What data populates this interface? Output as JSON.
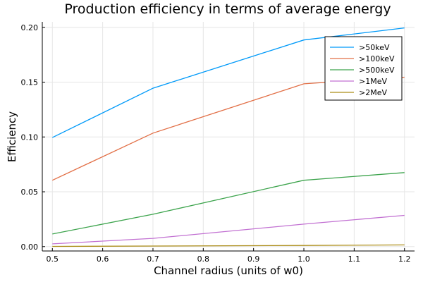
{
  "chart_data": {
    "type": "line",
    "title": "Production efficiency in terms of average energy",
    "xlabel": "Channel radius (units of w0)",
    "ylabel": "Efficiency",
    "xlim": [
      0.48,
      1.22
    ],
    "ylim": [
      -0.004,
      0.205
    ],
    "xticks": [
      0.5,
      0.6,
      0.7,
      0.8,
      0.9,
      1.0,
      1.1,
      1.2
    ],
    "xtick_labels": [
      "0.5",
      "0.6",
      "0.7",
      "0.8",
      "0.9",
      "1.0",
      "1.1",
      "1.2"
    ],
    "yticks": [
      0.0,
      0.05,
      0.1,
      0.15,
      0.2
    ],
    "ytick_labels": [
      "0.00",
      "0.05",
      "0.10",
      "0.15",
      "0.20"
    ],
    "grid": true,
    "legend_position": "top-right",
    "x": [
      0.5,
      0.7,
      1.0,
      1.2
    ],
    "series": [
      {
        "name": ">50keV",
        "color": "#009af9",
        "values": [
          0.0995,
          0.1445,
          0.1885,
          0.1995
        ]
      },
      {
        "name": ">100keV",
        "color": "#e26f46",
        "values": [
          0.0605,
          0.1035,
          0.1485,
          0.1545
        ]
      },
      {
        "name": ">500keV",
        "color": "#3da44d",
        "values": [
          0.0115,
          0.0295,
          0.0605,
          0.0675
        ]
      },
      {
        "name": ">1MeV",
        "color": "#c271d2",
        "values": [
          0.0025,
          0.0075,
          0.0205,
          0.0285
        ]
      },
      {
        "name": ">2MeV",
        "color": "#ac8d18",
        "values": [
          0.0002,
          0.0005,
          0.001,
          0.0015
        ]
      }
    ]
  }
}
